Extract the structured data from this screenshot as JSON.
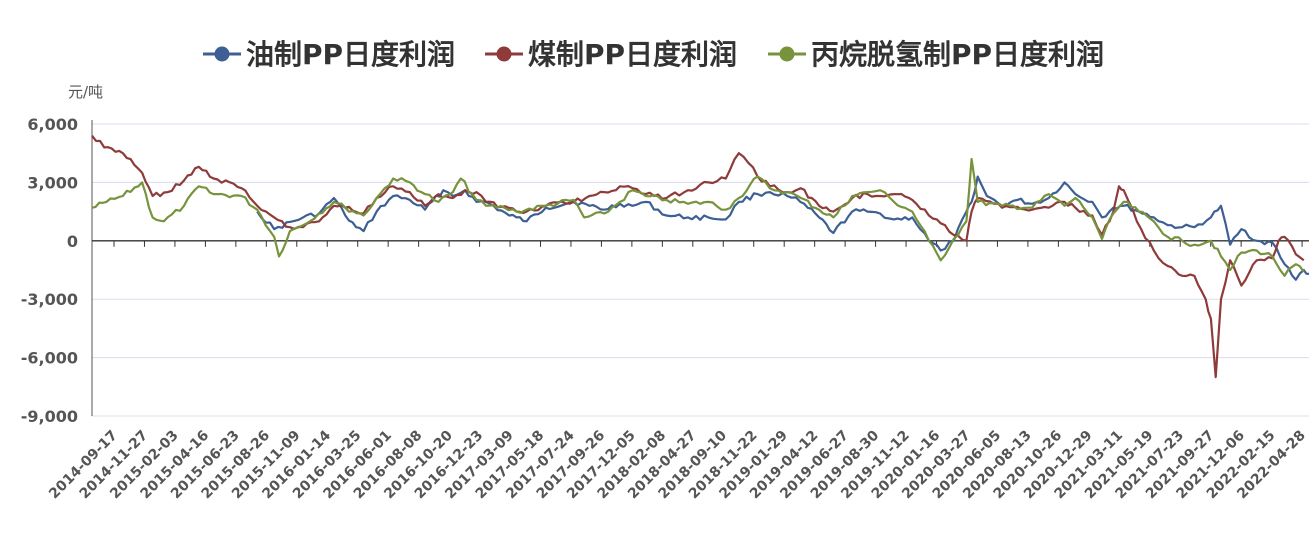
{
  "chart_data": {
    "type": "line",
    "legend": {
      "position": "top-center"
    },
    "ylabel": "元/吨",
    "ylim": [
      -9000,
      6000
    ],
    "yticks": [
      6000,
      3000,
      0,
      -3000,
      -6000,
      -9000
    ],
    "ytick_labels": [
      "6,000",
      "3,000",
      "0",
      "-3,000",
      "-6,000",
      "-9,000"
    ],
    "grid": true,
    "xlim": [
      "2014-09-17",
      "2022-05-10"
    ],
    "x_tick_labels": [
      "2014-09-17",
      "2014-11-27",
      "2015-02-03",
      "2015-04-16",
      "2015-06-23",
      "2015-08-26",
      "2015-11-09",
      "2016-01-14",
      "2016-03-25",
      "2016-06-01",
      "2016-08-08",
      "2016-10-20",
      "2016-12-23",
      "2017-03-09",
      "2017-05-18",
      "2017-07-24",
      "2017-09-26",
      "2017-12-05",
      "2018-02-08",
      "2018-04-27",
      "2018-09-10",
      "2018-11-22",
      "2019-01-29",
      "2019-04-12",
      "2019-06-27",
      "2019-08-30",
      "2019-11-12",
      "2020-01-16",
      "2020-03-27",
      "2020-06-05",
      "2020-08-13",
      "2020-10-26",
      "2020-12-29",
      "2021-03-11",
      "2021-05-19",
      "2021-07-23",
      "2021-09-27",
      "2021-12-06",
      "2022-02-15",
      "2022-04-28"
    ],
    "series": [
      {
        "name": "油制PP日度利润",
        "color": "#3d5f94",
        "points": [
          [
            "2015-10-01",
            1500
          ],
          [
            "2015-11-09",
            600
          ],
          [
            "2016-01-14",
            1200
          ],
          [
            "2016-02-20",
            1400
          ],
          [
            "2016-03-25",
            2200
          ],
          [
            "2016-04-20",
            1300
          ],
          [
            "2016-05-15",
            700
          ],
          [
            "2016-06-01",
            500
          ],
          [
            "2016-07-01",
            1500
          ],
          [
            "2016-08-08",
            2300
          ],
          [
            "2016-09-15",
            2100
          ],
          [
            "2016-10-20",
            1600
          ],
          [
            "2016-12-01",
            2600
          ],
          [
            "2016-12-23",
            2300
          ],
          [
            "2017-01-20",
            2600
          ],
          [
            "2017-02-15",
            2000
          ],
          [
            "2017-03-09",
            2000
          ],
          [
            "2017-05-01",
            1300
          ],
          [
            "2017-05-18",
            1200
          ],
          [
            "2017-06-10",
            1000
          ],
          [
            "2017-07-24",
            1700
          ],
          [
            "2017-09-26",
            2000
          ],
          [
            "2017-11-01",
            1800
          ],
          [
            "2017-12-05",
            1600
          ],
          [
            "2018-01-10",
            1900
          ],
          [
            "2018-02-08",
            1800
          ],
          [
            "2018-03-10",
            2000
          ],
          [
            "2018-04-27",
            1300
          ],
          [
            "2018-06-15",
            1200
          ],
          [
            "2018-08-01",
            1200
          ],
          [
            "2018-09-10",
            1100
          ],
          [
            "2018-10-10",
            2000
          ],
          [
            "2018-11-22",
            2400
          ],
          [
            "2018-12-20",
            2500
          ],
          [
            "2019-01-29",
            2300
          ],
          [
            "2019-02-28",
            2000
          ],
          [
            "2019-04-12",
            1200
          ],
          [
            "2019-05-15",
            400
          ],
          [
            "2019-06-27",
            1500
          ],
          [
            "2019-08-01",
            1500
          ],
          [
            "2019-08-30",
            1400
          ],
          [
            "2019-10-01",
            1100
          ],
          [
            "2019-11-12",
            1200
          ],
          [
            "2019-12-20",
            0
          ],
          [
            "2020-01-16",
            -500
          ],
          [
            "2020-02-15",
            0
          ],
          [
            "2020-03-15",
            1500
          ],
          [
            "2020-03-27",
            2000
          ],
          [
            "2020-04-10",
            3300
          ],
          [
            "2020-05-01",
            2300
          ],
          [
            "2020-06-05",
            1800
          ],
          [
            "2020-07-10",
            2100
          ],
          [
            "2020-08-13",
            1900
          ],
          [
            "2020-09-20",
            2200
          ],
          [
            "2020-10-26",
            3000
          ],
          [
            "2020-11-20",
            2400
          ],
          [
            "2020-12-29",
            2000
          ],
          [
            "2021-01-20",
            1200
          ],
          [
            "2021-02-15",
            1700
          ],
          [
            "2021-03-11",
            1800
          ],
          [
            "2021-04-15",
            1500
          ],
          [
            "2021-05-19",
            1200
          ],
          [
            "2021-06-20",
            800
          ],
          [
            "2021-07-23",
            700
          ],
          [
            "2021-08-20",
            700
          ],
          [
            "2021-09-27",
            1200
          ],
          [
            "2021-10-20",
            1800
          ],
          [
            "2021-11-10",
            -200
          ],
          [
            "2021-12-06",
            600
          ],
          [
            "2022-01-10",
            0
          ],
          [
            "2022-02-15",
            -100
          ],
          [
            "2022-03-15",
            -1200
          ],
          [
            "2022-04-10",
            -2000
          ],
          [
            "2022-04-28",
            -1500
          ],
          [
            "2022-05-10",
            -1700
          ]
        ]
      },
      {
        "name": "煤制PP日度利润",
        "color": "#8e3b39",
        "points": [
          [
            "2014-09-17",
            5400
          ],
          [
            "2014-10-15",
            4800
          ],
          [
            "2014-11-27",
            4500
          ],
          [
            "2015-01-10",
            3500
          ],
          [
            "2015-02-03",
            2300
          ],
          [
            "2015-03-10",
            2500
          ],
          [
            "2015-04-16",
            3100
          ],
          [
            "2015-05-20",
            3800
          ],
          [
            "2015-06-23",
            3200
          ],
          [
            "2015-08-26",
            2700
          ],
          [
            "2015-10-01",
            1800
          ],
          [
            "2015-11-09",
            1200
          ],
          [
            "2015-12-15",
            700
          ],
          [
            "2016-01-14",
            700
          ],
          [
            "2016-02-20",
            1000
          ],
          [
            "2016-03-25",
            1800
          ],
          [
            "2016-04-20",
            1700
          ],
          [
            "2016-06-01",
            1400
          ],
          [
            "2016-07-01",
            2200
          ],
          [
            "2016-08-08",
            2800
          ],
          [
            "2016-09-15",
            2500
          ],
          [
            "2016-10-20",
            1800
          ],
          [
            "2016-11-20",
            2400
          ],
          [
            "2016-12-23",
            2200
          ],
          [
            "2017-01-20",
            2600
          ],
          [
            "2017-02-15",
            2500
          ],
          [
            "2017-03-09",
            2000
          ],
          [
            "2017-05-18",
            1500
          ],
          [
            "2017-06-10",
            1500
          ],
          [
            "2017-07-24",
            1800
          ],
          [
            "2017-09-26",
            2000
          ],
          [
            "2017-11-01",
            2300
          ],
          [
            "2017-12-05",
            2500
          ],
          [
            "2018-01-10",
            2800
          ],
          [
            "2018-02-08",
            2700
          ],
          [
            "2018-03-10",
            2400
          ],
          [
            "2018-04-27",
            2200
          ],
          [
            "2018-06-15",
            2600
          ],
          [
            "2018-08-01",
            3000
          ],
          [
            "2018-09-10",
            3200
          ],
          [
            "2018-10-10",
            4500
          ],
          [
            "2018-11-01",
            4000
          ],
          [
            "2018-11-22",
            3300
          ],
          [
            "2018-12-20",
            2800
          ],
          [
            "2019-01-29",
            2500
          ],
          [
            "2019-03-01",
            2700
          ],
          [
            "2019-04-12",
            1800
          ],
          [
            "2019-05-15",
            1500
          ],
          [
            "2019-06-27",
            2200
          ],
          [
            "2019-08-01",
            2400
          ],
          [
            "2019-08-30",
            2300
          ],
          [
            "2019-10-01",
            2400
          ],
          [
            "2019-11-12",
            2100
          ],
          [
            "2019-12-20",
            1300
          ],
          [
            "2020-01-16",
            900
          ],
          [
            "2020-02-15",
            300
          ],
          [
            "2020-03-15",
            0
          ],
          [
            "2020-03-27",
            1500
          ],
          [
            "2020-04-10",
            2200
          ],
          [
            "2020-06-05",
            1700
          ],
          [
            "2020-08-13",
            1600
          ],
          [
            "2020-09-20",
            1700
          ],
          [
            "2020-10-26",
            2000
          ],
          [
            "2020-11-20",
            1700
          ],
          [
            "2020-12-29",
            1300
          ],
          [
            "2021-01-20",
            300
          ],
          [
            "2021-02-15",
            1500
          ],
          [
            "2021-02-28",
            2800
          ],
          [
            "2021-03-11",
            2600
          ],
          [
            "2021-04-10",
            1000
          ],
          [
            "2021-05-19",
            -500
          ],
          [
            "2021-06-20",
            -1300
          ],
          [
            "2021-07-23",
            -1800
          ],
          [
            "2021-08-20",
            -1800
          ],
          [
            "2021-09-15",
            -3000
          ],
          [
            "2021-09-27",
            -4000
          ],
          [
            "2021-10-08",
            -7000
          ],
          [
            "2021-10-20",
            -3000
          ],
          [
            "2021-11-10",
            -1000
          ],
          [
            "2021-12-06",
            -2300
          ],
          [
            "2022-01-10",
            -1000
          ],
          [
            "2022-02-15",
            -900
          ],
          [
            "2022-03-01",
            0
          ],
          [
            "2022-03-15",
            200
          ],
          [
            "2022-04-10",
            -700
          ],
          [
            "2022-04-28",
            -1000
          ]
        ]
      },
      {
        "name": "丙烷脱氢制PP日度利润",
        "color": "#77933c",
        "points": [
          [
            "2014-09-17",
            1700
          ],
          [
            "2014-10-20",
            2000
          ],
          [
            "2014-11-27",
            2300
          ],
          [
            "2015-01-10",
            3000
          ],
          [
            "2015-02-03",
            1200
          ],
          [
            "2015-03-01",
            1000
          ],
          [
            "2015-04-16",
            1800
          ],
          [
            "2015-05-20",
            2800
          ],
          [
            "2015-06-23",
            2400
          ],
          [
            "2015-08-26",
            2300
          ],
          [
            "2015-10-01",
            1600
          ],
          [
            "2015-11-09",
            200
          ],
          [
            "2015-11-20",
            -800
          ],
          [
            "2015-12-15",
            500
          ],
          [
            "2016-01-14",
            800
          ],
          [
            "2016-03-25",
            2000
          ],
          [
            "2016-04-20",
            1700
          ],
          [
            "2016-06-01",
            1300
          ],
          [
            "2016-07-01",
            2200
          ],
          [
            "2016-08-08",
            3200
          ],
          [
            "2016-09-15",
            3000
          ],
          [
            "2016-10-20",
            2400
          ],
          [
            "2016-11-20",
            2000
          ],
          [
            "2016-12-23",
            2500
          ],
          [
            "2017-01-10",
            3200
          ],
          [
            "2017-02-15",
            2100
          ],
          [
            "2017-03-09",
            1800
          ],
          [
            "2017-04-20",
            1700
          ],
          [
            "2017-05-18",
            1500
          ],
          [
            "2017-07-24",
            1800
          ],
          [
            "2017-09-26",
            2100
          ],
          [
            "2017-10-20",
            1200
          ],
          [
            "2017-12-05",
            1400
          ],
          [
            "2018-01-10",
            2000
          ],
          [
            "2018-02-08",
            2600
          ],
          [
            "2018-03-10",
            2300
          ],
          [
            "2018-04-27",
            2100
          ],
          [
            "2018-06-15",
            1900
          ],
          [
            "2018-08-01",
            2000
          ],
          [
            "2018-09-10",
            1600
          ],
          [
            "2018-10-10",
            2200
          ],
          [
            "2018-11-22",
            3300
          ],
          [
            "2018-12-20",
            2700
          ],
          [
            "2019-01-29",
            2500
          ],
          [
            "2019-03-01",
            2200
          ],
          [
            "2019-04-12",
            1600
          ],
          [
            "2019-05-15",
            1200
          ],
          [
            "2019-06-27",
            2300
          ],
          [
            "2019-08-01",
            2500
          ],
          [
            "2019-08-30",
            2600
          ],
          [
            "2019-10-01",
            2000
          ],
          [
            "2019-11-12",
            1500
          ],
          [
            "2019-12-20",
            0
          ],
          [
            "2020-01-16",
            -1000
          ],
          [
            "2020-02-15",
            100
          ],
          [
            "2020-03-15",
            1000
          ],
          [
            "2020-03-27",
            4200
          ],
          [
            "2020-04-10",
            2000
          ],
          [
            "2020-06-05",
            1800
          ],
          [
            "2020-08-13",
            1700
          ],
          [
            "2020-09-20",
            2400
          ],
          [
            "2020-10-26",
            1800
          ],
          [
            "2020-11-20",
            2200
          ],
          [
            "2020-12-29",
            1200
          ],
          [
            "2021-01-20",
            100
          ],
          [
            "2021-02-15",
            1400
          ],
          [
            "2021-03-11",
            2000
          ],
          [
            "2021-04-15",
            1500
          ],
          [
            "2021-05-19",
            1000
          ],
          [
            "2021-06-20",
            200
          ],
          [
            "2021-07-23",
            0
          ],
          [
            "2021-08-20",
            -200
          ],
          [
            "2021-09-27",
            0
          ],
          [
            "2021-10-20",
            -800
          ],
          [
            "2021-11-10",
            -1500
          ],
          [
            "2021-12-06",
            -600
          ],
          [
            "2022-01-10",
            -500
          ],
          [
            "2022-02-15",
            -800
          ],
          [
            "2022-03-15",
            -1800
          ],
          [
            "2022-04-10",
            -1200
          ],
          [
            "2022-04-28",
            -1600
          ]
        ]
      }
    ]
  }
}
